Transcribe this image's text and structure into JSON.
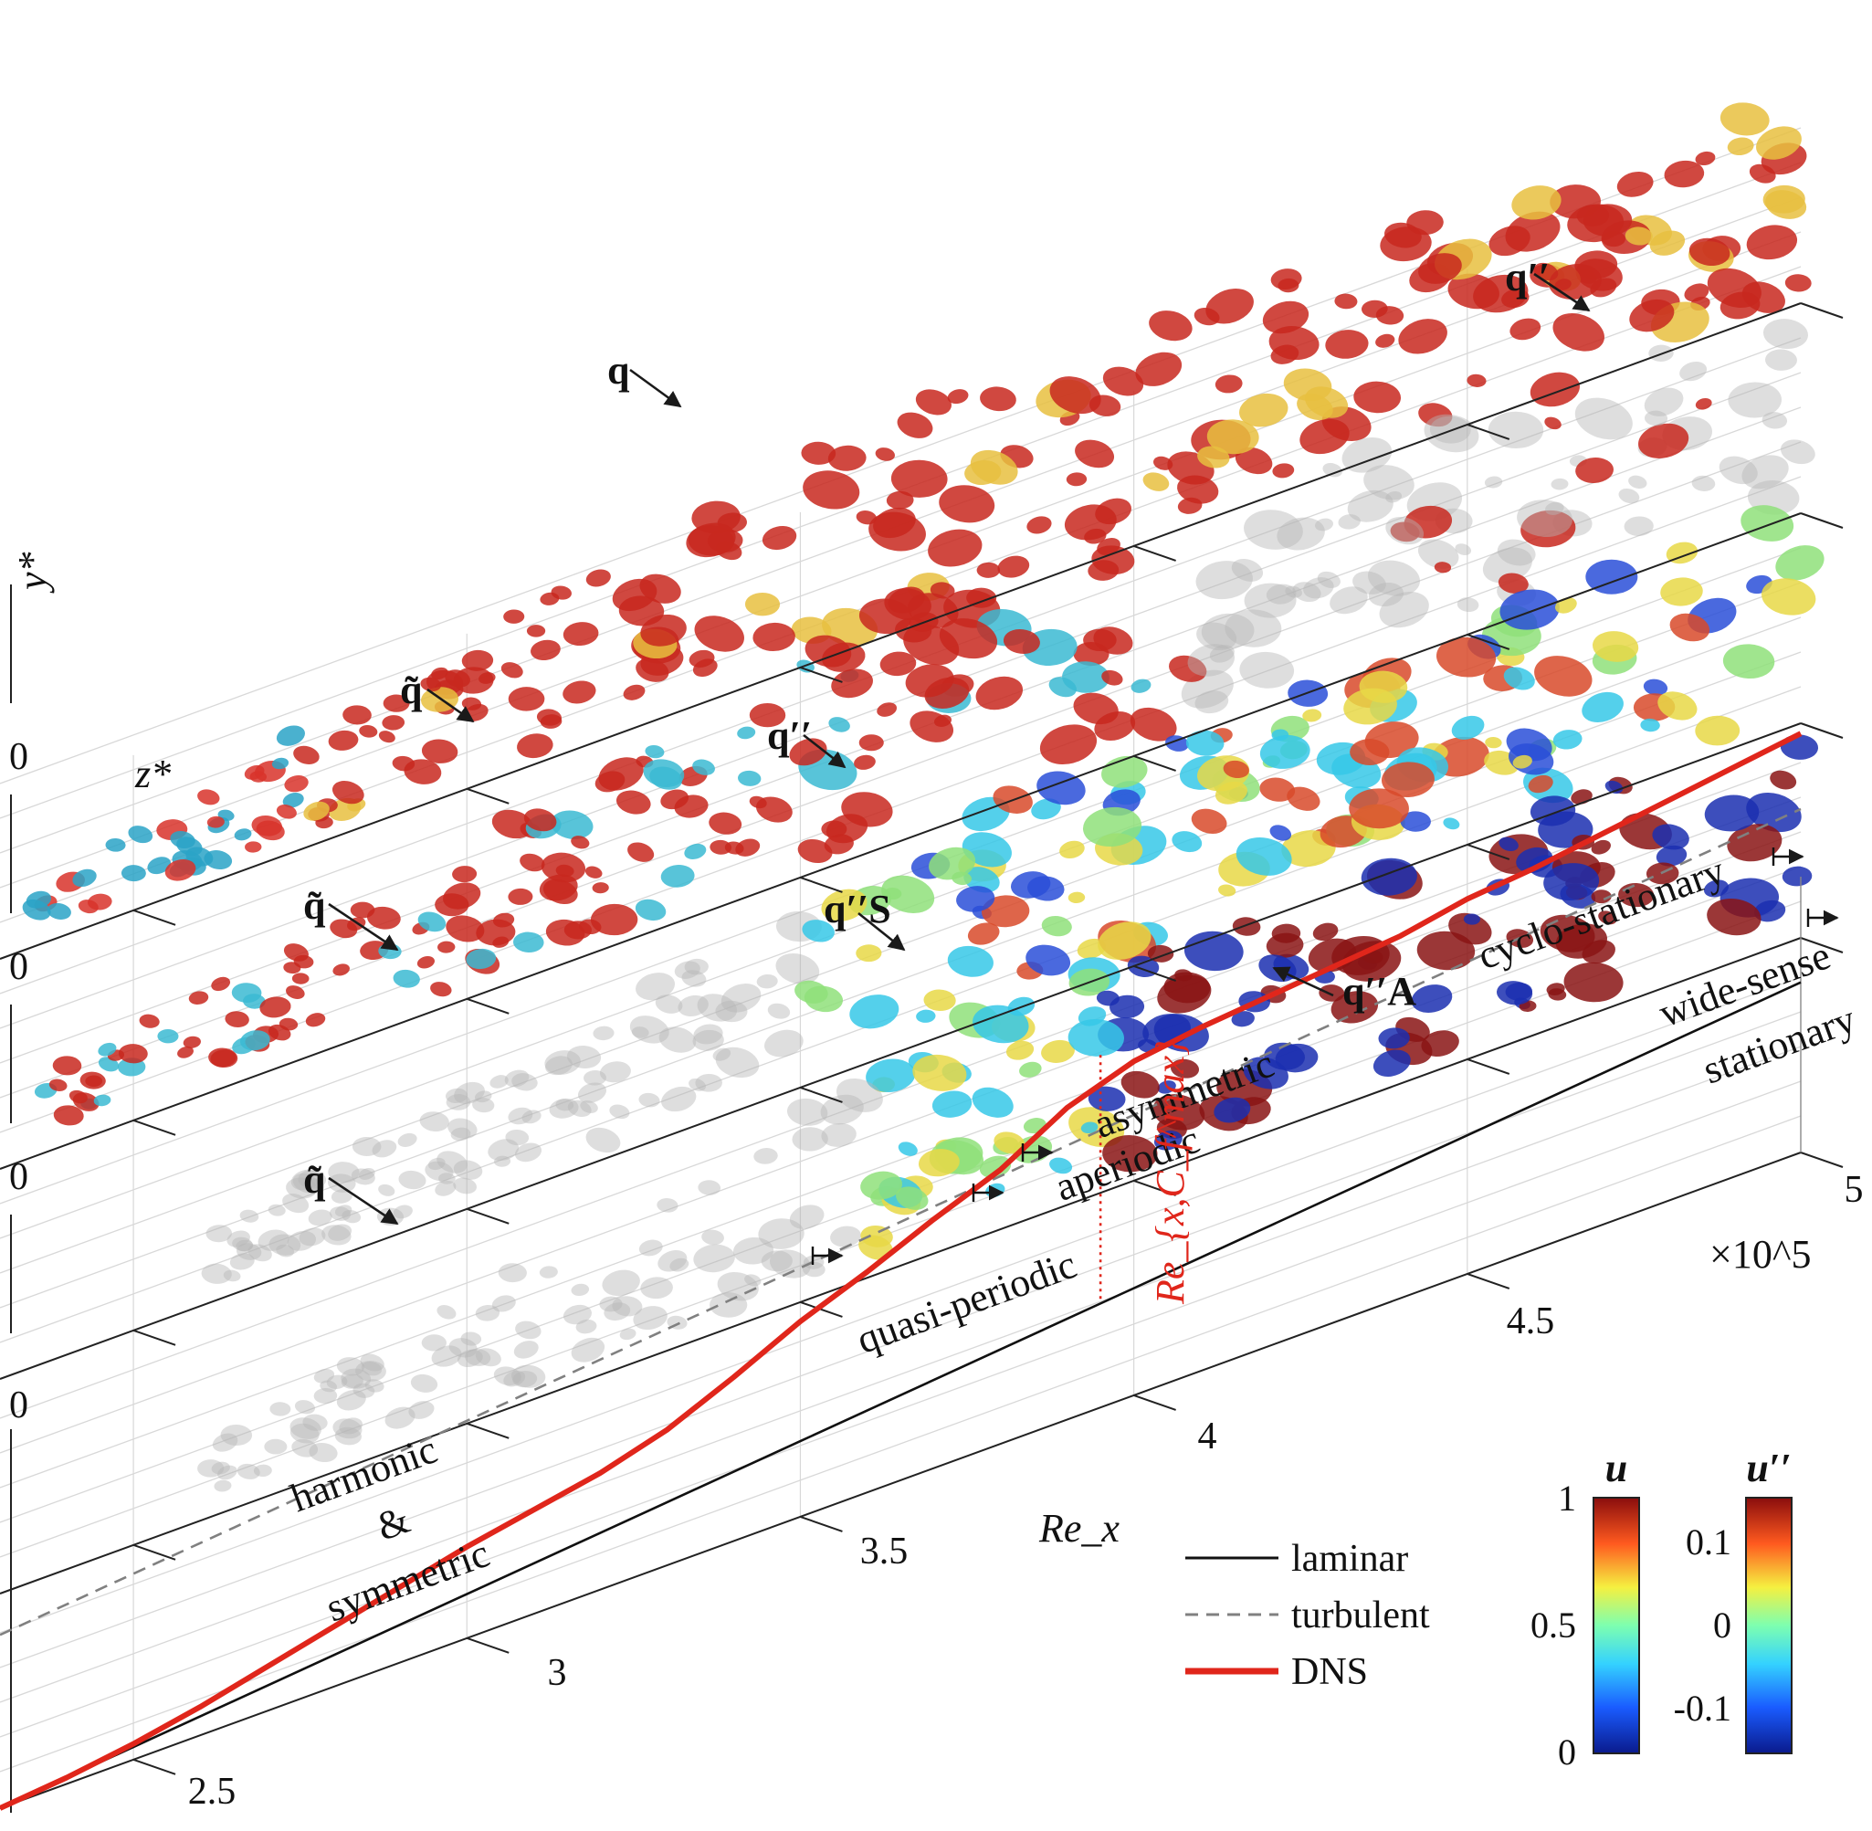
{
  "chart_data": {
    "type": "line",
    "xlabel": "Re_x",
    "x_multiplier": "×10^5",
    "x_ticks": [
      "2.5",
      "3",
      "3.5",
      "4",
      "4.5",
      "5"
    ],
    "panel_zero_ticks": [
      "0",
      "0",
      "0",
      "0"
    ],
    "axis_labels": {
      "y": "y*",
      "z": "z*"
    },
    "series": [
      {
        "name": "laminar",
        "style": "solid-black",
        "x": [
          2.3,
          2.5,
          3.0,
          3.5,
          4.0,
          4.5,
          5.0
        ],
        "y": [
          0.0,
          0.04,
          0.14,
          0.24,
          0.34,
          0.44,
          0.54
        ]
      },
      {
        "name": "turbulent",
        "style": "dashed-gray",
        "x": [
          2.3,
          2.5,
          3.0,
          3.5,
          4.0,
          4.5,
          5.0
        ],
        "y": [
          0.55,
          0.59,
          0.69,
          0.79,
          0.89,
          0.99,
          1.09
        ]
      },
      {
        "name": "DNS",
        "style": "solid-red",
        "x": [
          2.3,
          2.4,
          2.5,
          2.6,
          2.7,
          2.8,
          2.9,
          3.0,
          3.1,
          3.2,
          3.3,
          3.4,
          3.5,
          3.6,
          3.7,
          3.8,
          3.85,
          3.9,
          4.0,
          4.1,
          4.2,
          4.3,
          4.4,
          4.5,
          4.6,
          4.7,
          4.8,
          4.9,
          5.0
        ],
        "y": [
          0.0,
          0.02,
          0.05,
          0.09,
          0.14,
          0.19,
          0.24,
          0.29,
          0.33,
          0.37,
          0.43,
          0.52,
          0.62,
          0.7,
          0.79,
          0.87,
          0.93,
          0.99,
          1.06,
          1.09,
          1.11,
          1.13,
          1.15,
          1.19,
          1.21,
          1.24,
          1.27,
          1.3,
          1.33
        ]
      }
    ],
    "marker_line": {
      "label": "Re_{x,C_f^max}",
      "x": 3.95
    },
    "regime_labels": [
      "harmonic",
      "&",
      "symmetric",
      "quasi-periodic",
      "aperiodic",
      "asymmetric",
      "cyclo-stationary",
      "wide-sense",
      "stationary"
    ],
    "panel_labels": {
      "p1": [
        "q",
        "q′′"
      ],
      "p2": [
        "q̃",
        "q′′"
      ],
      "p3": [
        "q̃",
        "q′′S",
        "q′′A"
      ],
      "p4": [
        "q̃"
      ]
    },
    "legend": {
      "entries": [
        "laminar",
        "turbulent",
        "DNS"
      ],
      "placement": "bottom-center"
    },
    "colorbars": [
      {
        "title": "u",
        "ticks": [
          "1",
          "0.5",
          "0"
        ],
        "range": [
          0,
          1
        ]
      },
      {
        "title": "u′′",
        "ticks": [
          "0.1",
          "0",
          "-0.1"
        ],
        "range": [
          -0.15,
          0.15
        ]
      }
    ],
    "colors": {
      "dns": "#e0261b",
      "laminar": "#111111",
      "turbulent": "#808080",
      "grid": "#d8d8d8",
      "vortex_red": "#c8281e",
      "vortex_gray": "#b5b5b5"
    }
  }
}
